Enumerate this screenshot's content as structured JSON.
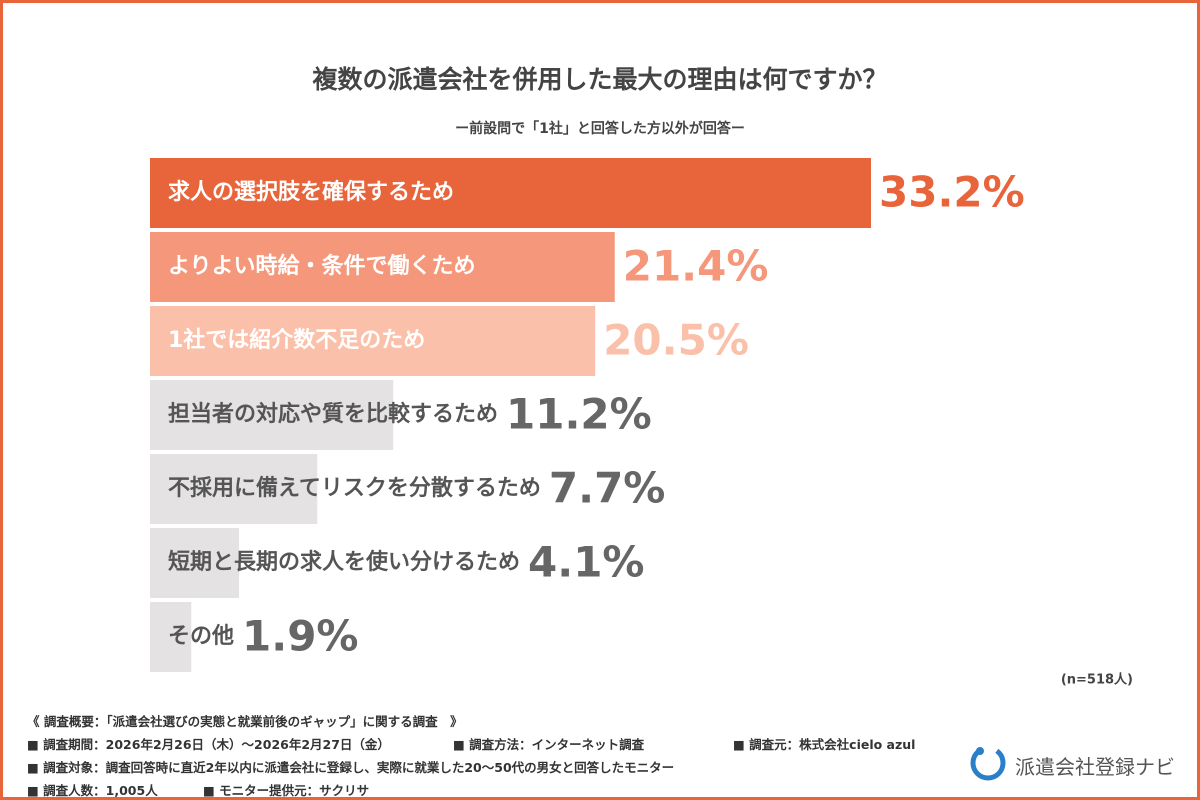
{
  "chart_data": {
    "type": "hbar",
    "title": "複数の派遣会社を併用した最大の理由は何ですか？",
    "subtitle": "ー前設問で「1社」と回答した方以外が回答ー",
    "categories": [
      "求人の選択肢を確保するため",
      "よりよい時給・条件で働くため",
      "1社では紹介数不足のため",
      "担当者の対応や質を比較するため",
      "不採用に備えてリスクを分散するため",
      "短期と長期の求人を使い分けるため",
      "その他"
    ],
    "values": [
      33.2,
      21.4,
      20.5,
      11.2,
      7.7,
      4.1,
      1.9
    ],
    "value_labels": [
      "33.2%",
      "21.4%",
      "20.5%",
      "11.2%",
      "7.7%",
      "4.1%",
      "1.9%"
    ],
    "colors": [
      "#e8643a",
      "#f4977a",
      "#fbc0aa",
      "#e4e2e2",
      "#e4e2e2",
      "#e4e2e2",
      "#e4e2e2"
    ],
    "text_colors": [
      "#ffffff",
      "#ffffff",
      "#ffffff",
      "#555555",
      "#555555",
      "#555555",
      "#555555"
    ],
    "value_label_colors": [
      "#e8643a",
      "#f4977a",
      "#fbc0aa",
      "#666666",
      "#666666",
      "#666666",
      "#666666"
    ],
    "note": "(n=518人)"
  },
  "footer": {
    "heading": "《 調査概要：「派遣会社選びの実態と就業前後のギャップ」に関する調査　》",
    "period": "■ 調査期間：2026年2月26日（木）〜2026年2月27日（金）",
    "method": "■ 調査方法：インターネット調査",
    "source": "■ 調査元：株式会社cielo azul",
    "target": "■ 調査対象：調査回答時に直近2年以内に派遣会社に登録し、実際に就業した20〜50代の男女と回答したモニター",
    "count": "■ 調査人数：1,005人",
    "provider": "■ モニター提供元：サクリサ",
    "logo": "派遣会社登録ナビ"
  }
}
